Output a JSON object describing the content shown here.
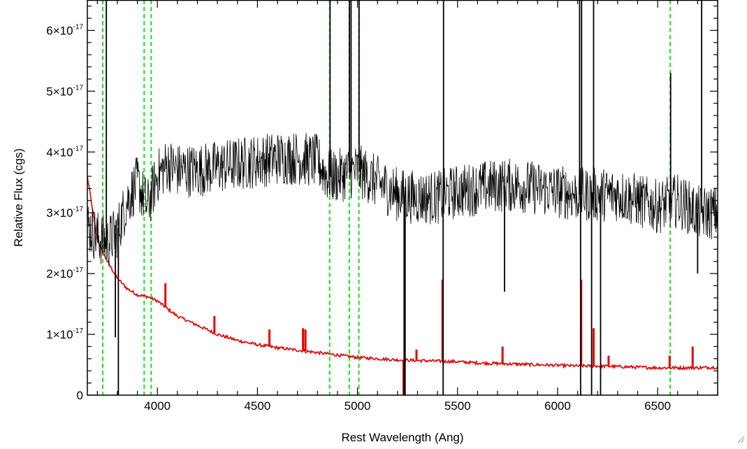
{
  "chart_data": {
    "type": "line",
    "xlabel": "Rest Wavelength (Ang)",
    "ylabel": "Relative Flux (cgs)",
    "xlim": [
      3650,
      6800
    ],
    "ylim": [
      0,
      6.5e-17
    ],
    "x_ticks": [
      4000,
      4500,
      5000,
      5500,
      6000,
      6500
    ],
    "x_tick_labels": [
      "4000",
      "4500",
      "5000",
      "5500",
      "6000",
      "6500"
    ],
    "y_ticks": [
      0,
      1e-17,
      2e-17,
      3e-17,
      4e-17,
      5e-17,
      6e-17
    ],
    "y_tick_labels": [
      {
        "mantissa": "0",
        "exponent": ""
      },
      {
        "mantissa": "1×10",
        "exponent": "-17"
      },
      {
        "mantissa": "2×10",
        "exponent": "-17"
      },
      {
        "mantissa": "3×10",
        "exponent": "-17"
      },
      {
        "mantissa": "4×10",
        "exponent": "-17"
      },
      {
        "mantissa": "5×10",
        "exponent": "-17"
      },
      {
        "mantissa": "6×10",
        "exponent": "-17"
      }
    ],
    "grid": false,
    "colors": {
      "spectrum": "#000000",
      "model": "#e00000",
      "lines": "#22dd22"
    },
    "vertical_lines": [
      3727,
      3934,
      3969,
      4861,
      4959,
      5007,
      6563
    ],
    "series": [
      {
        "key": "spectrum",
        "color": "#000000",
        "x": [
          3650,
          3700,
          3750,
          3800,
          3850,
          3900,
          3950,
          4000,
          4050,
          4100,
          4200,
          4300,
          4400,
          4500,
          4600,
          4700,
          4800,
          4850,
          4900,
          5000,
          5100,
          5200,
          5300,
          5400,
          5500,
          5600,
          5700,
          5800,
          5900,
          6000,
          6100,
          6200,
          6300,
          6400,
          6500,
          6600,
          6700,
          6800
        ],
        "y": [
          2.8e-17,
          2.6e-17,
          2.5e-17,
          2.7e-17,
          3.2e-17,
          3.5e-17,
          3.1e-17,
          3.6e-17,
          3.8e-17,
          3.7e-17,
          3.7e-17,
          3.75e-17,
          3.8e-17,
          3.85e-17,
          3.9e-17,
          3.9e-17,
          3.85e-17,
          3.6e-17,
          3.6e-17,
          3.7e-17,
          3.5e-17,
          3.3e-17,
          3.25e-17,
          3.25e-17,
          3.35e-17,
          3.4e-17,
          3.45e-17,
          3.45e-17,
          3.4e-17,
          3.35e-17,
          3.3e-17,
          3.3e-17,
          3.3e-17,
          3.2e-17,
          3.1e-17,
          3.2e-17,
          3e-17,
          3e-17
        ],
        "noise_amplitude": 4.5e-18,
        "spikes": [
          {
            "x": 3745,
            "y": 6.5e-17
          },
          {
            "x": 3790,
            "y": 9.5e-18
          },
          {
            "x": 3805,
            "y": 0
          },
          {
            "x": 4863,
            "y": 6.5e-17
          },
          {
            "x": 4960,
            "y": 6.5e-17
          },
          {
            "x": 4968,
            "y": 6.5e-17
          },
          {
            "x": 5008,
            "y": 6.5e-17
          },
          {
            "x": 5233,
            "y": 0
          },
          {
            "x": 5238,
            "y": 0
          },
          {
            "x": 5428,
            "y": 0
          },
          {
            "x": 5430,
            "y": 6.5e-17
          },
          {
            "x": 5735,
            "y": 1.7e-17
          },
          {
            "x": 6110,
            "y": 6.5e-17
          },
          {
            "x": 6115,
            "y": 0
          },
          {
            "x": 6120,
            "y": 6.5e-17
          },
          {
            "x": 6170,
            "y": 0
          },
          {
            "x": 6180,
            "y": 6.5e-17
          },
          {
            "x": 6215,
            "y": 0
          },
          {
            "x": 6565,
            "y": 5.3e-17
          },
          {
            "x": 6700,
            "y": 2e-17
          },
          {
            "x": 6720,
            "y": 6.5e-17
          }
        ]
      },
      {
        "key": "model",
        "color": "#e00000",
        "x": [
          3650,
          3700,
          3750,
          3800,
          3850,
          3900,
          3950,
          4000,
          4050,
          4100,
          4200,
          4300,
          4400,
          4500,
          4600,
          4700,
          4800,
          4900,
          5000,
          5100,
          5200,
          5300,
          5400,
          5500,
          5600,
          5700,
          5800,
          5900,
          6000,
          6100,
          6200,
          6300,
          6400,
          6500,
          6600,
          6700,
          6800
        ],
        "y": [
          3.6e-17,
          2.55e-17,
          2.2e-17,
          1.92e-17,
          1.75e-17,
          1.65e-17,
          1.62e-17,
          1.55e-17,
          1.42e-17,
          1.3e-17,
          1.15e-17,
          1e-17,
          9e-18,
          8.3e-18,
          7.8e-18,
          7.4e-18,
          7e-18,
          6.6e-18,
          6.2e-18,
          6e-18,
          5.8e-18,
          5.7e-18,
          5.6e-18,
          5.5e-18,
          5.3e-18,
          5.2e-18,
          5.1e-18,
          5e-18,
          4.9e-18,
          4.8e-18,
          4.8e-18,
          4.7e-18,
          4.6e-18,
          4.5e-18,
          4.5e-18,
          4.5e-18,
          4.6e-18
        ],
        "emission": [
          {
            "x": 3933,
            "y": 1.65e-17
          },
          {
            "x": 4040,
            "y": 1.84e-17
          },
          {
            "x": 4285,
            "y": 1.3e-17
          },
          {
            "x": 4560,
            "y": 1.08e-17
          },
          {
            "x": 4728,
            "y": 1.1e-17
          },
          {
            "x": 4740,
            "y": 1.08e-17
          },
          {
            "x": 5295,
            "y": 7.5e-18
          },
          {
            "x": 5425,
            "y": 1.9e-17
          },
          {
            "x": 5725,
            "y": 8e-18
          },
          {
            "x": 6118,
            "y": 1.9e-17
          },
          {
            "x": 6180,
            "y": 1.1e-17
          },
          {
            "x": 6255,
            "y": 6.5e-18
          },
          {
            "x": 6560,
            "y": 6.5e-18
          },
          {
            "x": 6675,
            "y": 8e-18
          }
        ],
        "absorption": [
          {
            "x": 5232,
            "y": 0
          }
        ]
      }
    ]
  }
}
